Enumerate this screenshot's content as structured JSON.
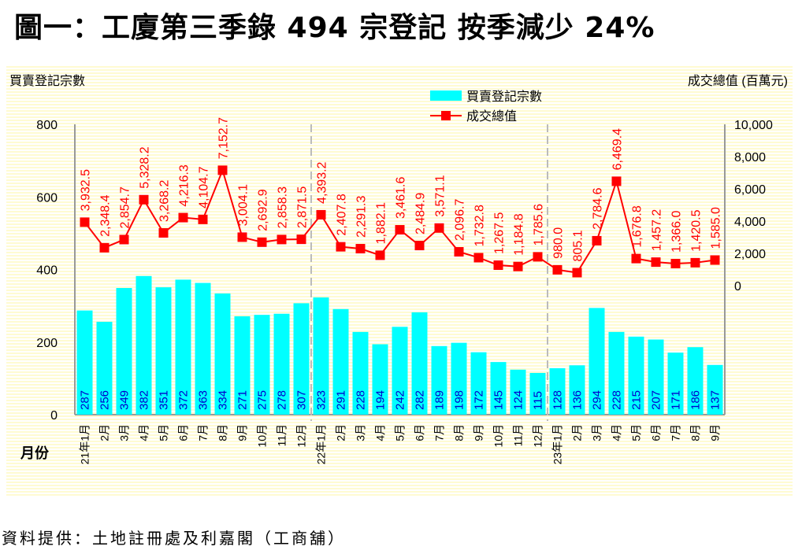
{
  "title": "圖一：工廈第三季錄 494 宗登記  按季減少 24%",
  "source": "資料提供：土地註冊處及利嘉閣（工商舖）",
  "colors": {
    "bars": "#00ffff",
    "line": "#ff0000",
    "bar_label": "#0000cc"
  },
  "chart_data": {
    "type": "bar+line",
    "ylabel_left": "買賣登記宗數",
    "ylabel_right": "成交總值 (百萬元)",
    "xlabel": "月份",
    "ylim_left": [
      0,
      800
    ],
    "yticks_left": [
      "0",
      "200",
      "400",
      "600",
      "800"
    ],
    "ylim_right": [
      -8000,
      10000
    ],
    "yticks_right": [
      "0",
      "2,000",
      "4,000",
      "6,000",
      "8,000",
      "10,000"
    ],
    "categories": [
      "21年1月",
      "2月",
      "3月",
      "4月",
      "5月",
      "6月",
      "7月",
      "8月",
      "9月",
      "10月",
      "11月",
      "12月",
      "22年1月",
      "2月",
      "3月",
      "4月",
      "5月",
      "6月",
      "7月",
      "8月",
      "9月",
      "10月",
      "11月",
      "12月",
      "23年1月",
      "2月",
      "3月",
      "4月",
      "5月",
      "6月",
      "7月",
      "8月",
      "9月"
    ],
    "series": [
      {
        "name": "買賣登記宗數",
        "type": "bar",
        "values": [
          287,
          256,
          349,
          382,
          351,
          372,
          363,
          334,
          271,
          275,
          278,
          307,
          323,
          291,
          228,
          194,
          242,
          282,
          189,
          198,
          172,
          145,
          124,
          115,
          128,
          136,
          294,
          228,
          215,
          207,
          171,
          186,
          137
        ]
      },
      {
        "name": "成交總值",
        "type": "line",
        "values": [
          3932.5,
          2348.4,
          2854.7,
          5328.2,
          3268.2,
          4216.3,
          4104.7,
          7152.7,
          3004.1,
          2692.9,
          2858.3,
          2871.5,
          4393.2,
          2407.8,
          2291.3,
          1882.1,
          3461.6,
          2484.9,
          3571.1,
          2096.7,
          1732.8,
          1267.5,
          1184.8,
          1785.6,
          980.0,
          805.1,
          2784.6,
          6469.4,
          1676.8,
          1457.2,
          1366.0,
          1420.5,
          1585.0
        ],
        "labels": [
          "3,932.5",
          "2,348.4",
          "2,854.7",
          "5,328.2",
          "3,268.2",
          "4,216.3",
          "4,104.7",
          "7,152.7",
          "3,004.1",
          "2,692.9",
          "2,858.3",
          "2,871.5",
          "4,393.2",
          "2,407.8",
          "2,291.3",
          "1,882.1",
          "3,461.6",
          "2,484.9",
          "3,571.1",
          "2,096.7",
          "1,732.8",
          "1,267.5",
          "1,184.8",
          "1,785.6",
          "980.0",
          "805.1",
          "2,784.6",
          "6,469.4",
          "1,676.8",
          "1,457.2",
          "1,366.0",
          "1,420.5",
          "1,585.0"
        ]
      }
    ],
    "legend": "top-center",
    "year_dividers": [
      "22年1月",
      "23年1月"
    ]
  }
}
